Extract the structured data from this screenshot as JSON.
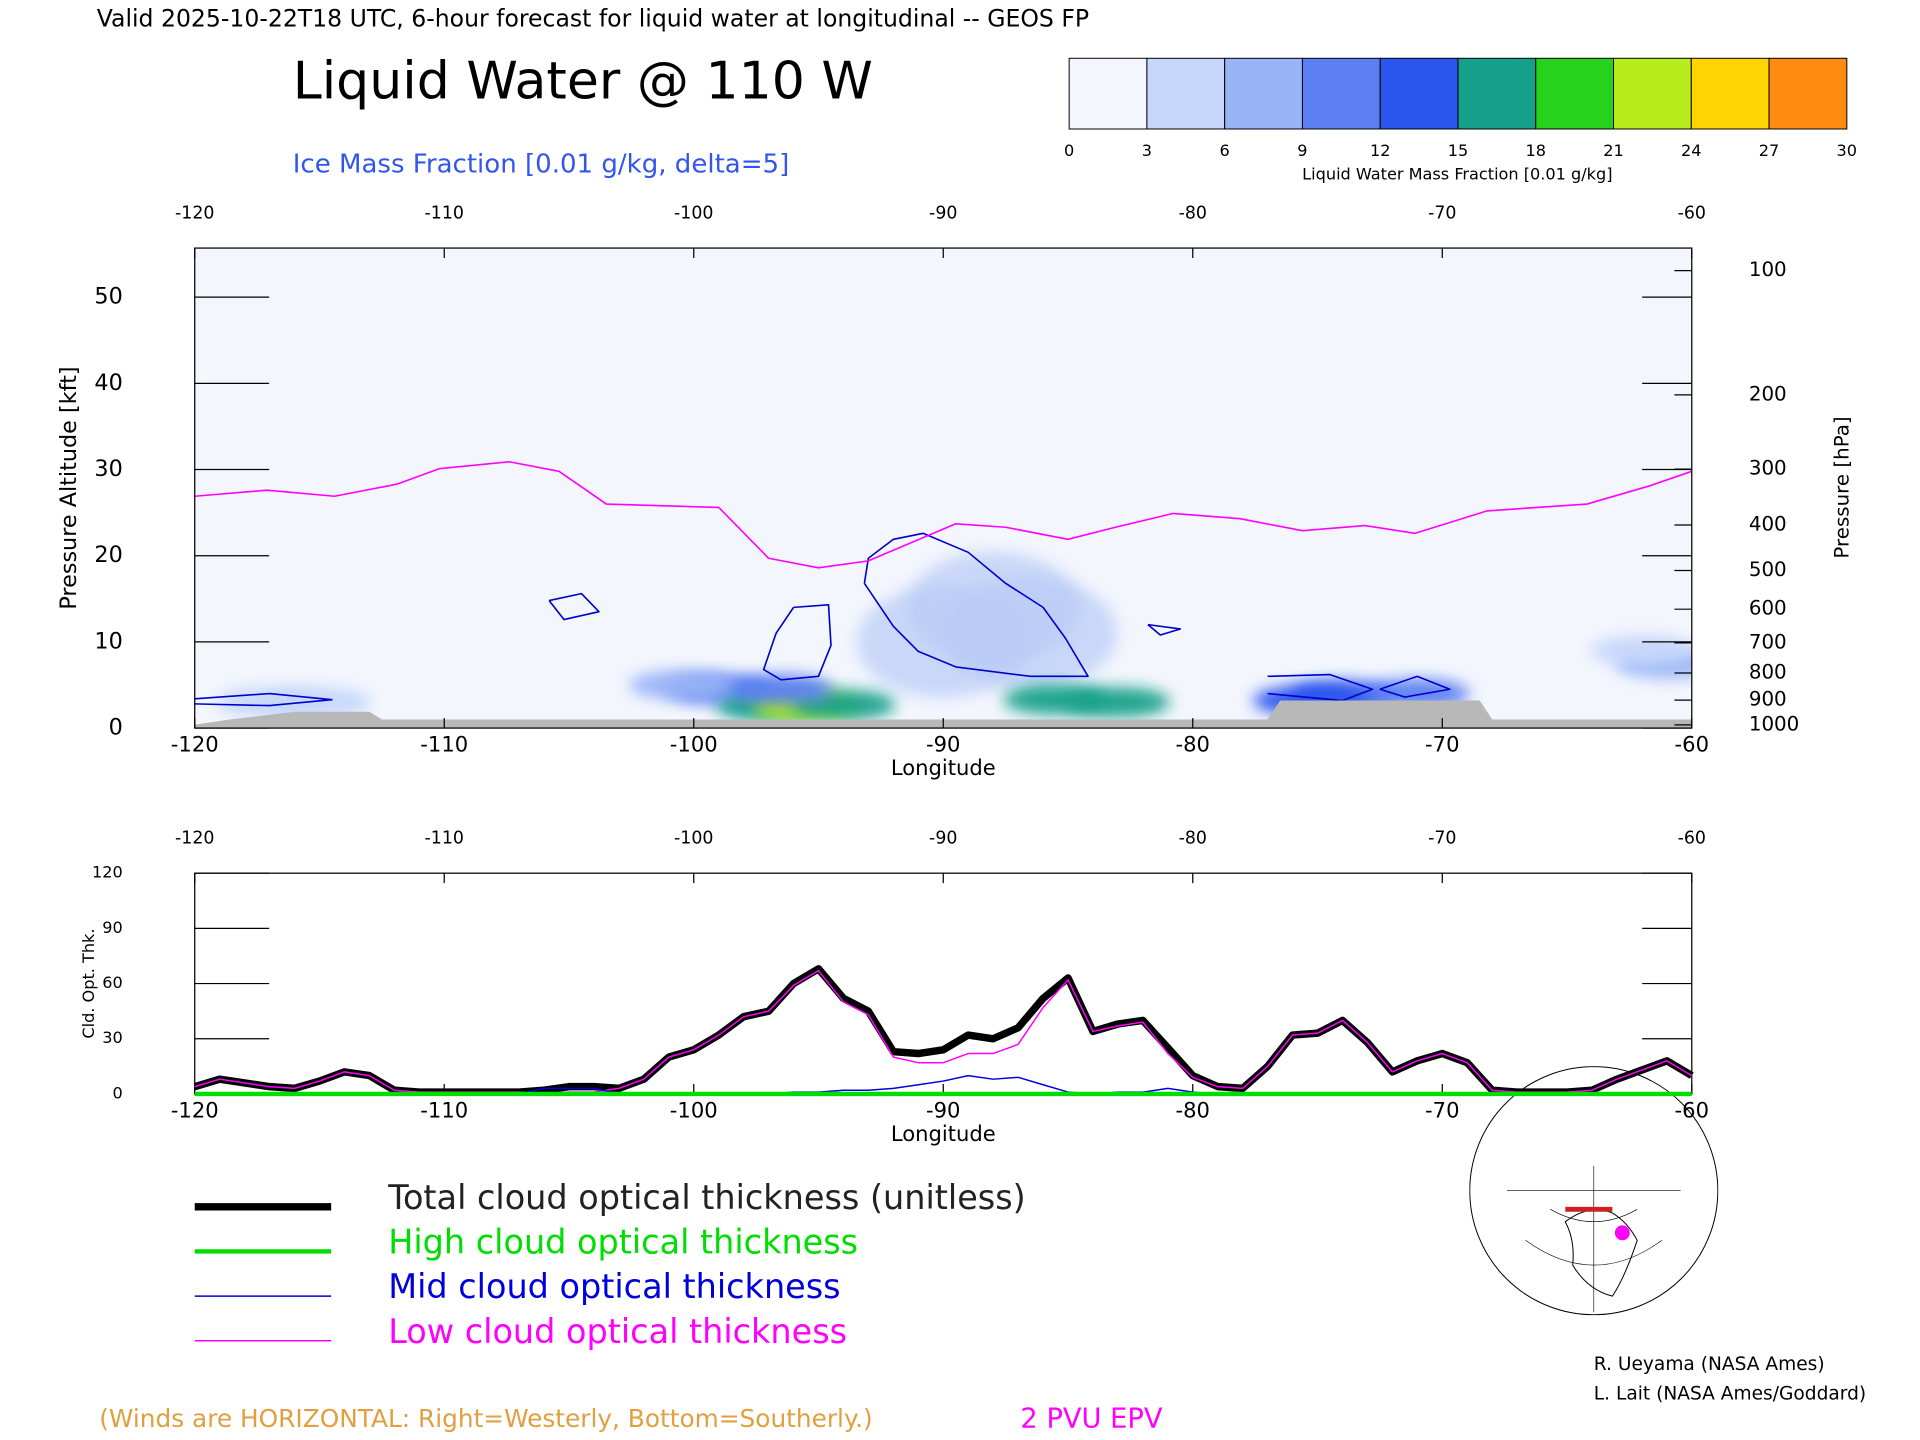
{
  "header": {
    "valid": "Valid 2025-10-22T18 UTC, 6-hour forecast for liquid water at longitudinal -- GEOS FP"
  },
  "chart_data": [
    {
      "type": "cross-section",
      "title": "Liquid Water @ 110 W",
      "subtitle": "Ice Mass Fraction [0.01 g/kg, delta=5]",
      "xlabel": "Longitude",
      "ylabel": "Pressure Altitude [kft]",
      "y2label": "Pressure [hPa]",
      "xlim": [
        -120,
        -60
      ],
      "xticks": [
        -120,
        -110,
        -100,
        -90,
        -80,
        -70,
        -60
      ],
      "ylim": [
        0,
        55.7
      ],
      "yticks": [
        0,
        10,
        20,
        30,
        40,
        50
      ],
      "y2ticks": [
        100,
        200,
        300,
        400,
        500,
        600,
        700,
        800,
        900,
        1000
      ],
      "colorbar": {
        "label": "Liquid Water Mass Fraction [0.01 g/kg]",
        "ticks": [
          0,
          3,
          6,
          9,
          12,
          15,
          18,
          21,
          24,
          27,
          30
        ],
        "colors": [
          "#f3f6fd",
          "#c6d7fb",
          "#99b3f7",
          "#5b7ff2",
          "#2c55ee",
          "#14a08a",
          "#26d21c",
          "#b8ec1c",
          "#ffd400",
          "#ff8c10"
        ]
      },
      "field": {
        "x": [
          -88,
          -86.5,
          -90,
          -117,
          -115,
          -99,
          -97,
          -95.5,
          -94,
          -96.5,
          -100.5,
          -85.5,
          -83,
          -75.5,
          -74,
          -71,
          -61,
          -62
        ],
        "y": [
          14,
          11,
          10,
          3,
          3,
          4.5,
          2.5,
          2.5,
          2.7,
          4.5,
          5,
          3.3,
          3,
          3.2,
          3.8,
          4,
          7.5,
          9
        ],
        "values": [
          1,
          1,
          1,
          5,
          4,
          9,
          17,
          21,
          16,
          10,
          6,
          15,
          16,
          14,
          13,
          11,
          8,
          5
        ]
      },
      "contour_color": "#0000cc",
      "contours": [
        {
          "x": [
            -93.16,
            -93.0,
            -92.0,
            -90.8,
            -89.0,
            -87.5,
            -86.0,
            -85.1,
            -84.2,
            -86.5,
            -89.5,
            -91.0,
            -92.0,
            -93.16
          ],
          "y": [
            16.8,
            19.7,
            21.9,
            22.6,
            20.4,
            16.8,
            14.0,
            10.4,
            6.0,
            6.0,
            7.1,
            8.9,
            11.8,
            16.8
          ]
        },
        {
          "x": [
            -96.0,
            -94.6,
            -94.5,
            -95.0,
            -96.5,
            -97.2,
            -96.7,
            -96.0
          ],
          "y": [
            14.0,
            14.3,
            9.6,
            6.0,
            5.6,
            6.8,
            11.0,
            14.0
          ]
        },
        {
          "x": [
            -120,
            -117,
            -114.5,
            -117,
            -120
          ],
          "y": [
            3.4,
            4.0,
            3.3,
            2.6,
            2.8
          ]
        },
        {
          "x": [
            -105.8,
            -104.5,
            -103.8,
            -105.2,
            -105.8
          ],
          "y": [
            14.8,
            15.6,
            13.5,
            12.6,
            14.8
          ]
        },
        {
          "x": [
            -81.8,
            -80.5,
            -81.3,
            -81.8
          ],
          "y": [
            12.0,
            11.5,
            10.8,
            12.0
          ]
        },
        {
          "x": [
            -77,
            -74.5,
            -72.8,
            -74,
            -77
          ],
          "y": [
            6.0,
            6.2,
            4.5,
            3.2,
            4.0
          ]
        },
        {
          "x": [
            -72.5,
            -71,
            -69.7,
            -71.5,
            -72.5
          ],
          "y": [
            4.5,
            6.0,
            4.5,
            3.6,
            4.5
          ]
        }
      ],
      "surface": {
        "color": "#b8b8b8",
        "x": [
          -120,
          -118.6,
          -116,
          -113,
          -112.5,
          -77,
          -76.5,
          -68.5,
          -68,
          -60
        ],
        "y": [
          0.4,
          1.0,
          1.9,
          1.9,
          1.0,
          1.0,
          3.2,
          3.2,
          1.0,
          1.0
        ]
      },
      "series": [
        {
          "name": "2 PVU EPV",
          "color": "#ff00ff",
          "x": [
            -120,
            -117.1,
            -114.4,
            -111.9,
            -110.2,
            -107.4,
            -105.4,
            -103.5,
            -99,
            -97,
            -95,
            -93,
            -89.5,
            -87.5,
            -85,
            -83.1,
            -80.8,
            -78.1,
            -75.6,
            -73.1,
            -71.1,
            -68.2,
            -64.2,
            -61.7,
            -60
          ],
          "y": [
            26.9,
            27.6,
            26.9,
            28.3,
            30.1,
            30.9,
            29.8,
            26.0,
            25.6,
            19.7,
            18.6,
            19.4,
            23.7,
            23.3,
            21.9,
            23.3,
            24.9,
            24.3,
            22.9,
            23.5,
            22.6,
            25.2,
            26.0,
            28.1,
            29.8
          ]
        }
      ]
    },
    {
      "type": "line",
      "ylabel": "Cld. Opt. Thk.",
      "xlabel": "Longitude",
      "xlim": [
        -120,
        -60
      ],
      "xticks": [
        -120,
        -110,
        -100,
        -90,
        -80,
        -70,
        -60
      ],
      "ylim": [
        0,
        120
      ],
      "yticks": [
        0,
        30,
        60,
        90,
        120
      ],
      "legend": "bottom",
      "x": [
        -120,
        -119,
        -118,
        -117,
        -116,
        -115,
        -114,
        -113,
        -112,
        -111,
        -110,
        -109,
        -108,
        -107,
        -106,
        -105,
        -104,
        -103,
        -102,
        -101,
        -100,
        -99,
        -98,
        -97,
        -96,
        -95,
        -94,
        -93,
        -92,
        -91,
        -90,
        -89,
        -88,
        -87,
        -86,
        -85,
        -84,
        -83,
        -82,
        -81,
        -80,
        -79,
        -78,
        -77,
        -76,
        -75,
        -74,
        -73,
        -72,
        -71,
        -70,
        -69,
        -68,
        -67,
        -66,
        -65,
        -64,
        -63,
        -62,
        -61,
        -60
      ],
      "series": [
        {
          "name": "Total cloud optical thickness (unitless)",
          "color": "#000000",
          "width": 6,
          "values": [
            4,
            8,
            6,
            4,
            3,
            7,
            12,
            10,
            2,
            1,
            1,
            1,
            1,
            1,
            2,
            4,
            4,
            3,
            8,
            20,
            24,
            32,
            42,
            45,
            60,
            68,
            52,
            45,
            23,
            22,
            24,
            32,
            30,
            36,
            52,
            63,
            34,
            38,
            40,
            25,
            10,
            4,
            3,
            15,
            32,
            33,
            40,
            28,
            12,
            18,
            22,
            17,
            2,
            1,
            1,
            1,
            2,
            8,
            13,
            18,
            10
          ]
        },
        {
          "name": "High cloud optical thickness",
          "color": "#00dd00",
          "width": 3.5,
          "values": [
            0,
            0,
            0,
            0,
            0,
            0,
            0,
            0,
            0,
            0,
            0,
            0,
            0,
            0,
            0,
            0,
            0,
            0,
            0,
            0,
            0,
            0,
            0,
            0,
            0,
            0,
            0,
            0,
            0,
            0,
            0,
            0,
            0,
            0,
            0,
            0,
            0,
            0,
            0,
            0,
            0,
            0,
            0,
            0,
            0,
            0,
            0,
            0,
            0,
            0,
            0,
            0,
            0,
            0,
            0,
            0,
            0,
            0,
            0,
            0,
            0
          ]
        },
        {
          "name": "Mid cloud optical thickness",
          "color": "#0000dd",
          "width": 1.2,
          "values": [
            0,
            0,
            0,
            0,
            0,
            0,
            0,
            0,
            0,
            0,
            0,
            0,
            0,
            0,
            3,
            3,
            3,
            0,
            0,
            0,
            0,
            0,
            0,
            0,
            1,
            1,
            2,
            2,
            3,
            5,
            7,
            10,
            8,
            9,
            5,
            1,
            0,
            1,
            1,
            3,
            1,
            0,
            0,
            0,
            0,
            0,
            0,
            0,
            0,
            0,
            0,
            0,
            0,
            0,
            0,
            0,
            0,
            0,
            0,
            0,
            0
          ]
        },
        {
          "name": "Low cloud optical thickness",
          "color": "#ff00ff",
          "width": 1.2,
          "values": [
            4,
            8,
            6,
            4,
            3,
            7,
            12,
            10,
            2,
            1,
            1,
            1,
            1,
            1,
            0,
            1,
            1,
            3,
            8,
            20,
            24,
            32,
            42,
            45,
            59,
            67,
            50,
            43,
            20,
            17,
            17,
            22,
            22,
            27,
            47,
            62,
            34,
            37,
            39,
            22,
            9,
            4,
            3,
            15,
            32,
            33,
            40,
            28,
            12,
            18,
            22,
            17,
            2,
            1,
            1,
            1,
            2,
            8,
            13,
            18,
            10
          ]
        }
      ]
    }
  ],
  "footer": {
    "winds_note": "(Winds are HORIZONTAL: Right=Westerly, Bottom=Southerly.)",
    "credits": [
      "R. Ueyama (NASA Ames)",
      "L. Lait (NASA Ames/Goddard)"
    ]
  }
}
